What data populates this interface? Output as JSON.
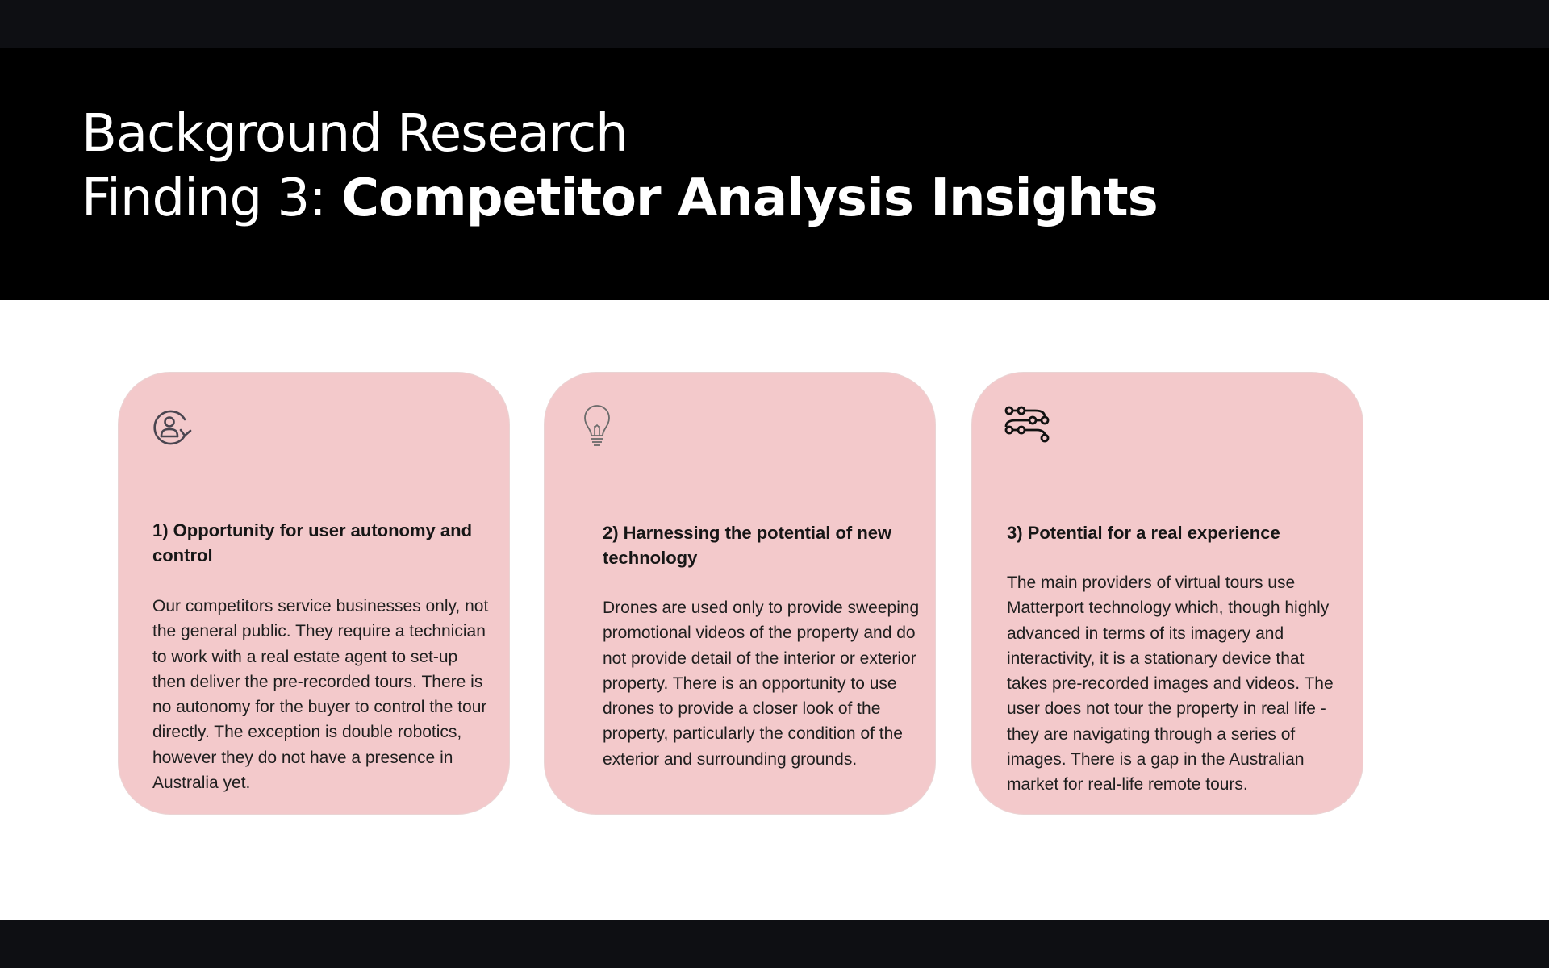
{
  "slide": {
    "title_line1": "Background Research",
    "title_line2_prefix": "Finding 3: ",
    "title_line2_bold": "Competitor Analysis Insights"
  },
  "cards": [
    {
      "icon": "user-rotate-icon",
      "title": "1) Opportunity for user autonomy and control",
      "body": "Our competitors service businesses only, not the general public. They require a technician to work with a real estate agent to set-up then deliver the pre-recorded tours. There is no autonomy for the buyer to control the tour directly. The exception is double robotics, however they do not have a presence in Australia yet."
    },
    {
      "icon": "lightbulb-icon",
      "title": "2) Harnessing the potential of new technology",
      "body": "Drones are used only to provide sweeping promotional videos of the property and do not provide detail of the interior or exterior property. There is an opportunity to use drones to provide a closer look of the property, particularly the condition of the exterior and surrounding grounds."
    },
    {
      "icon": "path-nodes-icon",
      "title": "3) Potential for a real experience",
      "body": "The main providers of virtual tours use Matterport technology which, though highly advanced in terms of its imagery and interactivity, it is a stationary device that takes pre-recorded images and videos. The user does not tour the property in real life - they are navigating through a series of images. There is a gap in the Australian market for real-life remote tours."
    }
  ],
  "colors": {
    "header_bg": "#000000",
    "card_bg": "#f3c9cb",
    "frame_bg": "#0e0f13"
  }
}
